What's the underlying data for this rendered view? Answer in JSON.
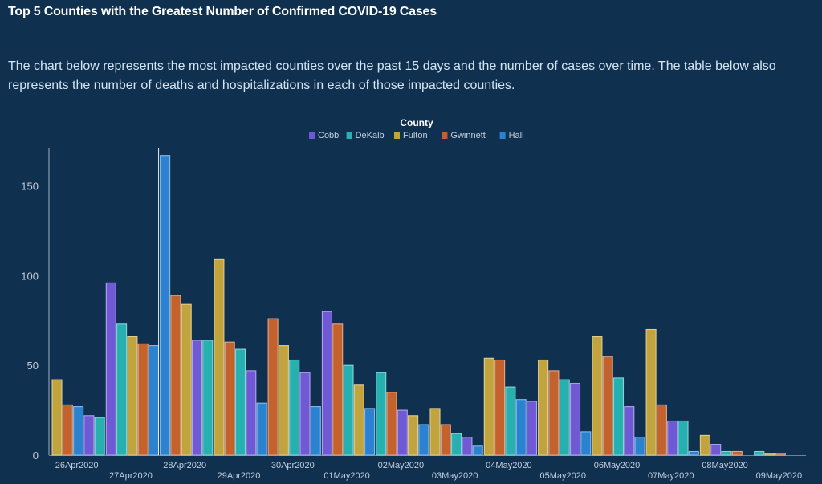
{
  "page": {
    "title": "Top 5 Counties with the Greatest Number of Confirmed COVID-19 Cases",
    "description": "The chart below represents the most impacted counties over the past 15 days and the number of cases over time. The table below also represents the number of deaths and hospitalizations in each of those impacted counties."
  },
  "chart_data": {
    "type": "bar",
    "legend_title": "County",
    "legend_position": "top-center",
    "grid": false,
    "ylim": [
      0,
      170
    ],
    "yticks": [
      0,
      50,
      100,
      150
    ],
    "categories": [
      "26Apr2020",
      "27Apr2020",
      "28Apr2020",
      "29Apr2020",
      "30Apr2020",
      "01May2020",
      "02May2020",
      "03May2020",
      "04May2020",
      "05May2020",
      "06May2020",
      "07May2020",
      "08May2020",
      "09May2020"
    ],
    "colors": {
      "Cobb": "#7059d4",
      "DeKalb": "#27b0b0",
      "Fulton": "#c2a43f",
      "Gwinnett": "#c3622d",
      "Hall": "#2a82d1"
    },
    "series": [
      {
        "name": "Cobb",
        "values": [
          22,
          96,
          64,
          47,
          46,
          80,
          25,
          10,
          30,
          40,
          27,
          19,
          6,
          0
        ]
      },
      {
        "name": "DeKalb",
        "values": [
          21,
          73,
          64,
          59,
          53,
          50,
          46,
          12,
          38,
          42,
          43,
          19,
          2,
          2
        ]
      },
      {
        "name": "Fulton",
        "values": [
          42,
          66,
          84,
          109,
          61,
          39,
          22,
          26,
          54,
          53,
          66,
          70,
          11,
          1
        ]
      },
      {
        "name": "Gwinnett",
        "values": [
          28,
          62,
          89,
          63,
          76,
          73,
          35,
          17,
          53,
          47,
          55,
          28,
          2,
          1
        ]
      },
      {
        "name": "Hall",
        "values": [
          27,
          61,
          167,
          29,
          27,
          26,
          17,
          5,
          31,
          13,
          10,
          2,
          0,
          0
        ]
      }
    ],
    "order": [
      [
        "Fulton",
        "Gwinnett",
        "Hall",
        "Cobb",
        "DeKalb"
      ],
      [
        "Cobb",
        "DeKalb",
        "Fulton",
        "Gwinnett",
        "Hall"
      ],
      [
        "Hall",
        "Gwinnett",
        "Fulton",
        "Cobb",
        "DeKalb"
      ],
      [
        "Fulton",
        "Gwinnett",
        "DeKalb",
        "Cobb",
        "Hall"
      ],
      [
        "Gwinnett",
        "Fulton",
        "DeKalb",
        "Cobb",
        "Hall"
      ],
      [
        "Cobb",
        "Gwinnett",
        "DeKalb",
        "Fulton",
        "Hall"
      ],
      [
        "DeKalb",
        "Gwinnett",
        "Cobb",
        "Fulton",
        "Hall"
      ],
      [
        "Fulton",
        "Gwinnett",
        "DeKalb",
        "Cobb",
        "Hall"
      ],
      [
        "Fulton",
        "Gwinnett",
        "DeKalb",
        "Hall",
        "Cobb"
      ],
      [
        "Fulton",
        "Gwinnett",
        "DeKalb",
        "Cobb",
        "Hall"
      ],
      [
        "Fulton",
        "Gwinnett",
        "DeKalb",
        "Cobb",
        "Hall"
      ],
      [
        "Fulton",
        "Gwinnett",
        "Cobb",
        "DeKalb",
        "Hall"
      ],
      [
        "Fulton",
        "Cobb",
        "DeKalb",
        "Gwinnett",
        "Hall"
      ],
      [
        "DeKalb",
        "Fulton",
        "Gwinnett",
        "Cobb",
        "Hall"
      ]
    ],
    "highlighted_category": "28Apr2020"
  }
}
